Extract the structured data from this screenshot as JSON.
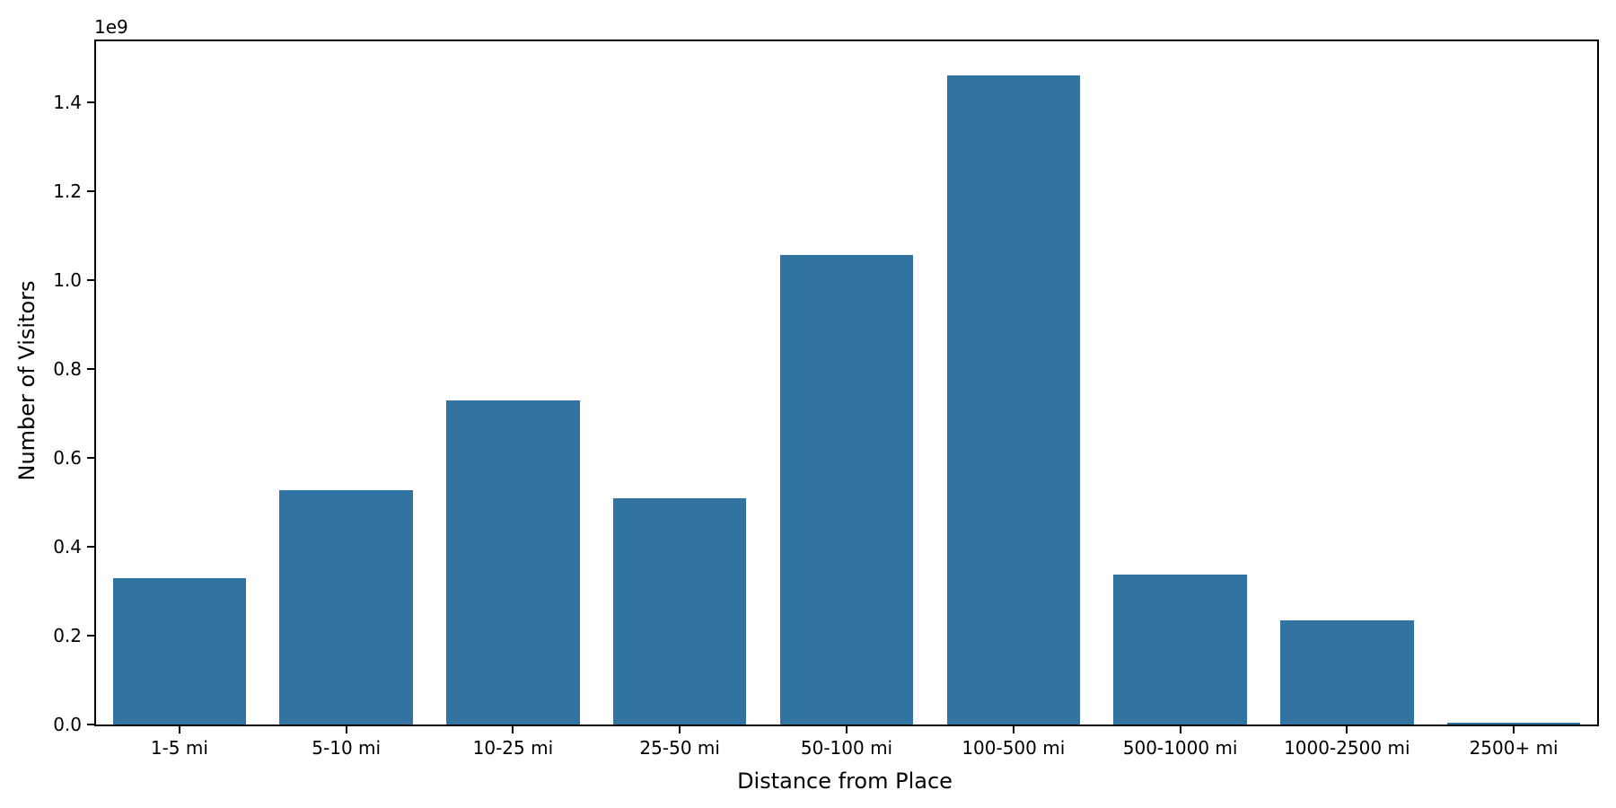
{
  "chart_data": {
    "type": "bar",
    "title": "",
    "xlabel": "Distance from Place",
    "ylabel": "Number of Visitors",
    "offset_text": "1e9",
    "categories": [
      "1-5 mi",
      "5-10 mi",
      "10-25 mi",
      "25-50 mi",
      "50-100 mi",
      "100-500 mi",
      "500-1000 mi",
      "1000-2500 mi",
      "2500+ mi"
    ],
    "values": [
      330000000,
      528000000,
      730000000,
      509000000,
      1057000000,
      1461000000,
      337000000,
      235000000,
      5000000
    ],
    "ylim": [
      0,
      1537000000
    ],
    "yticks": [
      0,
      200000000,
      400000000,
      600000000,
      800000000,
      1000000000,
      1200000000,
      1400000000
    ],
    "ytick_labels": [
      "0.0",
      "0.2",
      "0.4",
      "0.6",
      "0.8",
      "1.0",
      "1.2",
      "1.4"
    ],
    "bar_color": "#3274A1",
    "bar_width_frac": 0.8,
    "grid": false,
    "legend": null
  }
}
